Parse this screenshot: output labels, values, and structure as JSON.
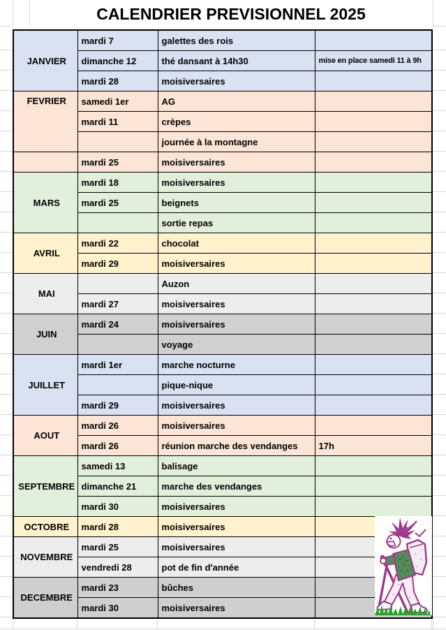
{
  "title": "CALENDRIER PREVISIONNEL 2025",
  "calendar": {
    "sections": [
      {
        "month": "JANVIER",
        "bg": "#d9e1f2",
        "rows": [
          {
            "date": "mardi 7",
            "event": "galettes des rois",
            "note": ""
          },
          {
            "date": "dimanche 12",
            "event": "thé dansant à 14h30",
            "note": "mise en place samedi 11 à 9h",
            "note_small": true
          },
          {
            "date": "mardi 28",
            "event": "moisiversaires",
            "note": ""
          }
        ]
      },
      {
        "month": "FEVRIER",
        "bg": "#fce4d6",
        "month_span": 3,
        "month_valign": "top",
        "rows": [
          {
            "date": "samedi 1er",
            "event": "AG",
            "note": ""
          },
          {
            "date": "mardi 11",
            "event": "crèpes",
            "note": ""
          },
          {
            "date": "",
            "event": "journée à la montagne",
            "note": ""
          },
          {
            "date": "mardi 25",
            "event": "moisiversaires",
            "note": ""
          }
        ]
      },
      {
        "month": "MARS",
        "bg": "#e2efda",
        "rows": [
          {
            "date": "mardi 18",
            "event": "moisiversaires",
            "note": ""
          },
          {
            "date": "mardi 25",
            "event": "beignets",
            "note": ""
          },
          {
            "date": "",
            "event": "sortie repas",
            "note": ""
          }
        ]
      },
      {
        "month": "AVRIL",
        "bg": "#fff2cc",
        "rows": [
          {
            "date": "mardi 22",
            "event": "chocolat",
            "note": ""
          },
          {
            "date": "mardi 29",
            "event": "moisiversaires",
            "note": ""
          }
        ]
      },
      {
        "month": "MAI",
        "bg": "#ededed",
        "rows": [
          {
            "date": "",
            "event": "Auzon",
            "note": ""
          },
          {
            "date": "mardi 27",
            "event": "moisiversaires",
            "note": ""
          }
        ]
      },
      {
        "month": "JUIN",
        "bg": "#d0d0d0",
        "rows": [
          {
            "date": "mardi 24",
            "event": "moisiversaires",
            "note": ""
          },
          {
            "date": "",
            "event": "voyage",
            "note": ""
          }
        ]
      },
      {
        "month": "JUILLET",
        "bg": "#d9e1f2",
        "rows": [
          {
            "date": "mardi 1er",
            "event": "marche nocturne",
            "note": ""
          },
          {
            "date": "",
            "event": "pique-nique",
            "note": ""
          },
          {
            "date": "mardi 29",
            "event": "moisiversaires",
            "note": ""
          }
        ]
      },
      {
        "month": "AOUT",
        "bg": "#fce4d6",
        "rows": [
          {
            "date": "mardi 26",
            "event": "moisiversaires",
            "note": ""
          },
          {
            "date": "mardi 26",
            "event": "réunion marche des vendanges",
            "note": "17h"
          }
        ]
      },
      {
        "month": "SEPTEMBRE",
        "bg": "#e2efda",
        "rows": [
          {
            "date": "samedi 13",
            "event": "balisage",
            "note": ""
          },
          {
            "date": "dimanche 21",
            "event": "marche des vendanges",
            "note": ""
          },
          {
            "date": "mardi 30",
            "event": "moisiversaires",
            "note": ""
          }
        ]
      },
      {
        "month": "OCTOBRE",
        "bg": "#fff2cc",
        "rows": [
          {
            "date": "mardi 28",
            "event": "moisiversaires",
            "note": ""
          }
        ]
      },
      {
        "month": "NOVEMBRE",
        "bg": "#ededed",
        "rows": [
          {
            "date": "mardi 25",
            "event": "moisiversaires",
            "note": ""
          },
          {
            "date": "vendredi 28",
            "event": "pot de fin d'année",
            "note": ""
          }
        ]
      },
      {
        "month": "DECEMBRE",
        "bg": "#cfcfcf",
        "rows": [
          {
            "date": "mardi 23",
            "event": "bûches",
            "note": ""
          },
          {
            "date": "mardi 30",
            "event": "moisiversaires",
            "note": ""
          }
        ]
      }
    ]
  },
  "illustration": {
    "name": "hiker-clipart",
    "colors": {
      "outline": "#9e3a8c",
      "sweater": "#55895a",
      "grass": "#2ba32a"
    }
  }
}
